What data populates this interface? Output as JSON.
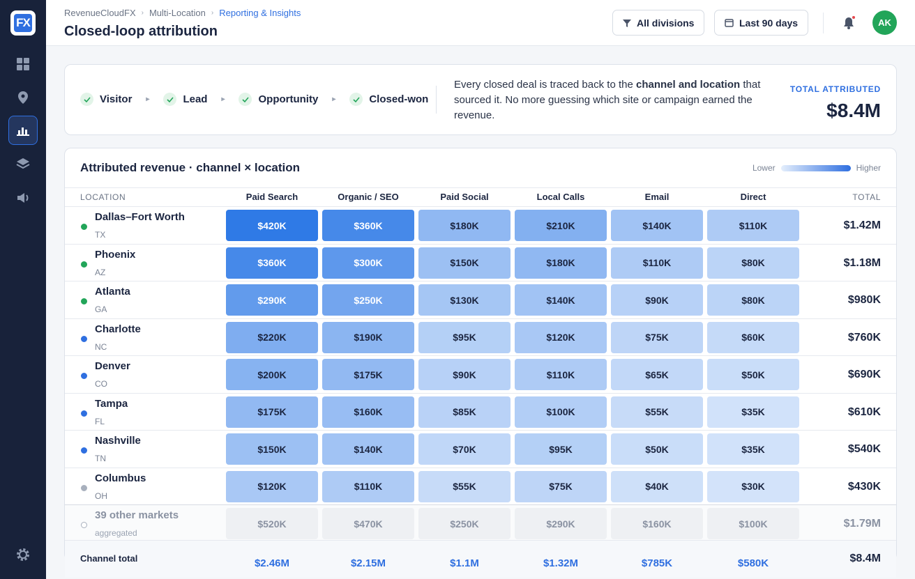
{
  "brand": "FX",
  "breadcrumb": [
    "RevenueCloudFX",
    "Multi-Location",
    "Reporting & Insights"
  ],
  "page_title": "Closed-loop attribution",
  "filters": [
    "All divisions",
    "Last 90 days"
  ],
  "avatar": "AK",
  "funnel": [
    "Visitor",
    "Lead",
    "Opportunity",
    "Closed-won"
  ],
  "description": {
    "before": "Every closed deal is traced back to the ",
    "bold": "channel and location",
    "after": " that sourced it. No more guessing which site or campaign earned the revenue."
  },
  "total": {
    "label": "TOTAL ATTRIBUTED",
    "value": "$8.4M"
  },
  "table": {
    "title": "Attributed revenue · channel × location",
    "legend": {
      "low": "Lower",
      "high": "Higher"
    },
    "columns": [
      "LOCATION",
      "Paid Search",
      "Organic / SEO",
      "Paid Social",
      "Local Calls",
      "Email",
      "Direct",
      "TOTAL"
    ],
    "rows": [
      {
        "name": "Dallas–Fort Worth",
        "region": "TX",
        "dot": "#22a559",
        "cells": [
          {
            "value": 420000,
            "label": "$420K"
          },
          {
            "value": 360000,
            "label": "$360K"
          },
          {
            "value": 180000,
            "label": "$180K"
          },
          {
            "value": 210000,
            "label": "$210K"
          },
          {
            "value": 140000,
            "label": "$140K"
          },
          {
            "value": 110000,
            "label": "$110K"
          }
        ],
        "total": "$1.42M"
      },
      {
        "name": "Phoenix",
        "region": "AZ",
        "dot": "#22a559",
        "cells": [
          {
            "value": 360000,
            "label": "$360K"
          },
          {
            "value": 300000,
            "label": "$300K"
          },
          {
            "value": 150000,
            "label": "$150K"
          },
          {
            "value": 180000,
            "label": "$180K"
          },
          {
            "value": 110000,
            "label": "$110K"
          },
          {
            "value": 80000,
            "label": "$80K"
          }
        ],
        "total": "$1.18M"
      },
      {
        "name": "Atlanta",
        "region": "GA",
        "dot": "#22a559",
        "cells": [
          {
            "value": 290000,
            "label": "$290K"
          },
          {
            "value": 250000,
            "label": "$250K"
          },
          {
            "value": 130000,
            "label": "$130K"
          },
          {
            "value": 140000,
            "label": "$140K"
          },
          {
            "value": 90000,
            "label": "$90K"
          },
          {
            "value": 80000,
            "label": "$80K"
          }
        ],
        "total": "$980K"
      },
      {
        "name": "Charlotte",
        "region": "NC",
        "dot": "#2f6fe0",
        "cells": [
          {
            "value": 220000,
            "label": "$220K"
          },
          {
            "value": 190000,
            "label": "$190K"
          },
          {
            "value": 95000,
            "label": "$95K"
          },
          {
            "value": 120000,
            "label": "$120K"
          },
          {
            "value": 75000,
            "label": "$75K"
          },
          {
            "value": 60000,
            "label": "$60K"
          }
        ],
        "total": "$760K"
      },
      {
        "name": "Denver",
        "region": "CO",
        "dot": "#2f6fe0",
        "cells": [
          {
            "value": 200000,
            "label": "$200K"
          },
          {
            "value": 175000,
            "label": "$175K"
          },
          {
            "value": 90000,
            "label": "$90K"
          },
          {
            "value": 110000,
            "label": "$110K"
          },
          {
            "value": 65000,
            "label": "$65K"
          },
          {
            "value": 50000,
            "label": "$50K"
          }
        ],
        "total": "$690K"
      },
      {
        "name": "Tampa",
        "region": "FL",
        "dot": "#2f6fe0",
        "cells": [
          {
            "value": 175000,
            "label": "$175K"
          },
          {
            "value": 160000,
            "label": "$160K"
          },
          {
            "value": 85000,
            "label": "$85K"
          },
          {
            "value": 100000,
            "label": "$100K"
          },
          {
            "value": 55000,
            "label": "$55K"
          },
          {
            "value": 35000,
            "label": "$35K"
          }
        ],
        "total": "$610K"
      },
      {
        "name": "Nashville",
        "region": "TN",
        "dot": "#2f6fe0",
        "cells": [
          {
            "value": 150000,
            "label": "$150K"
          },
          {
            "value": 140000,
            "label": "$140K"
          },
          {
            "value": 70000,
            "label": "$70K"
          },
          {
            "value": 95000,
            "label": "$95K"
          },
          {
            "value": 50000,
            "label": "$50K"
          },
          {
            "value": 35000,
            "label": "$35K"
          }
        ],
        "total": "$540K"
      },
      {
        "name": "Columbus",
        "region": "OH",
        "dot": "#a8b0bd",
        "cells": [
          {
            "value": 120000,
            "label": "$120K"
          },
          {
            "value": 110000,
            "label": "$110K"
          },
          {
            "value": 55000,
            "label": "$55K"
          },
          {
            "value": 75000,
            "label": "$75K"
          },
          {
            "value": 40000,
            "label": "$40K"
          },
          {
            "value": 30000,
            "label": "$30K"
          }
        ],
        "total": "$430K"
      }
    ],
    "other": {
      "name": "39 other markets",
      "region": "aggregated",
      "cells": [
        "$520K",
        "$470K",
        "$250K",
        "$290K",
        "$160K",
        "$100K"
      ],
      "total": "$1.79M"
    },
    "footer": {
      "label": "Channel total",
      "cells": [
        "$2.46M",
        "$2.15M",
        "$1.1M",
        "$1.32M",
        "$785K",
        "$580K"
      ],
      "total": "$8.4M"
    }
  }
}
